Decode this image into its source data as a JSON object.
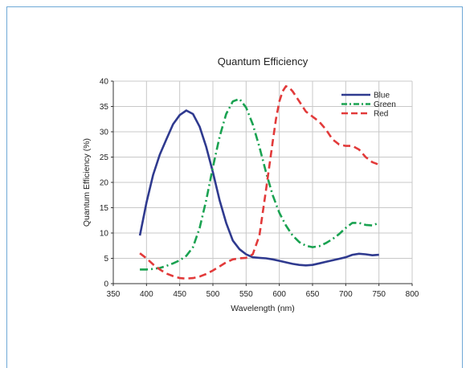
{
  "chart_data": {
    "type": "line",
    "title": "Quantum Efficiency",
    "xlabel": "Wavelength (nm)",
    "ylabel": "Quantum Efficiency (%)",
    "xlim": [
      350,
      800
    ],
    "ylim": [
      0,
      40
    ],
    "xticks": [
      350,
      400,
      450,
      500,
      550,
      600,
      650,
      700,
      750,
      800
    ],
    "yticks": [
      0,
      5,
      10,
      15,
      20,
      25,
      30,
      35,
      40
    ],
    "grid": true,
    "legend_position": "top-right",
    "series": [
      {
        "name": "Blue",
        "color": "#2f3a8f",
        "dash": "solid",
        "x": [
          390,
          400,
          410,
          420,
          430,
          440,
          450,
          460,
          470,
          480,
          490,
          500,
          510,
          520,
          530,
          540,
          550,
          560,
          570,
          580,
          590,
          600,
          610,
          620,
          630,
          640,
          650,
          660,
          670,
          680,
          690,
          700,
          710,
          720,
          730,
          740,
          750
        ],
        "y": [
          9.5,
          16,
          21.5,
          25.5,
          28.5,
          31.5,
          33.3,
          34.2,
          33.5,
          31,
          27,
          22,
          16.5,
          12,
          8.5,
          6.8,
          5.8,
          5.2,
          5.1,
          5.0,
          4.8,
          4.5,
          4.2,
          3.9,
          3.7,
          3.6,
          3.7,
          4.0,
          4.3,
          4.6,
          4.9,
          5.2,
          5.7,
          5.9,
          5.8,
          5.6,
          5.7
        ]
      },
      {
        "name": "Green",
        "color": "#1aa251",
        "dash": "dashdot",
        "x": [
          390,
          400,
          410,
          420,
          430,
          440,
          450,
          460,
          470,
          480,
          490,
          500,
          510,
          520,
          530,
          540,
          550,
          560,
          570,
          580,
          590,
          600,
          610,
          620,
          630,
          640,
          650,
          660,
          670,
          680,
          690,
          700,
          710,
          720,
          730,
          740,
          750
        ],
        "y": [
          2.8,
          2.8,
          2.9,
          3.1,
          3.5,
          4.0,
          4.6,
          5.5,
          7.2,
          11,
          16.5,
          23,
          29,
          33.5,
          36,
          36.5,
          34.8,
          31.5,
          27,
          22,
          17.5,
          14,
          11.5,
          9.5,
          8.2,
          7.5,
          7.2,
          7.4,
          8.0,
          8.8,
          9.8,
          11.0,
          12.0,
          12.0,
          11.6,
          11.5,
          12.0
        ]
      },
      {
        "name": "Red",
        "color": "#e23a3a",
        "dash": "dash",
        "x": [
          390,
          400,
          410,
          420,
          430,
          440,
          450,
          460,
          470,
          480,
          490,
          500,
          510,
          520,
          530,
          540,
          550,
          560,
          570,
          580,
          590,
          595,
          600,
          605,
          610,
          615,
          620,
          630,
          640,
          650,
          660,
          670,
          680,
          690,
          700,
          710,
          720,
          730,
          740,
          750
        ],
        "y": [
          6.0,
          5.0,
          3.8,
          2.8,
          2.0,
          1.5,
          1.1,
          1.0,
          1.1,
          1.4,
          1.9,
          2.6,
          3.4,
          4.2,
          4.8,
          5.0,
          5.1,
          5.8,
          9.5,
          18.5,
          28,
          32.5,
          36,
          38,
          39,
          38.7,
          38,
          36,
          34,
          33,
          32,
          30.5,
          28.5,
          27.5,
          27.2,
          27.2,
          26.5,
          25,
          24,
          23.5
        ]
      }
    ]
  }
}
